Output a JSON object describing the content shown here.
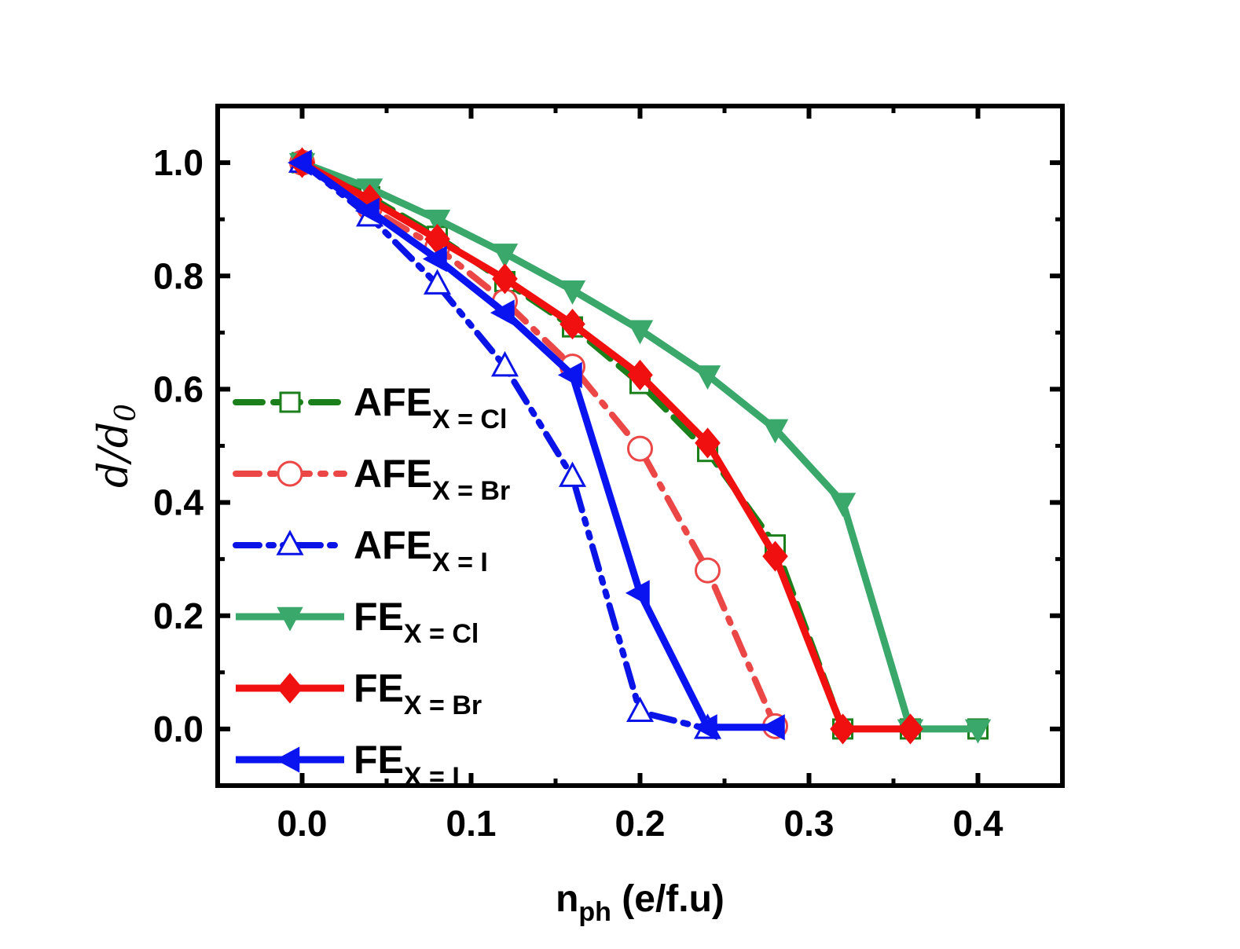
{
  "chart_data": {
    "type": "line",
    "xlabel_main": "n",
    "xlabel_sub": "ph",
    "xlabel_rest": " (e/f.u)",
    "ylabel_main": "d/d",
    "ylabel_sub": "0",
    "xlim": [
      -0.05,
      0.45
    ],
    "ylim": [
      -0.1,
      1.1
    ],
    "xticks": [
      0.0,
      0.1,
      0.2,
      0.3,
      0.4
    ],
    "xtick_labels": [
      "0.0",
      "0.1",
      "0.2",
      "0.3",
      "0.4"
    ],
    "yticks": [
      0.0,
      0.2,
      0.4,
      0.6,
      0.8,
      1.0
    ],
    "ytick_labels": [
      "0.0",
      "0.2",
      "0.4",
      "0.6",
      "0.8",
      "1.0"
    ],
    "grid": false,
    "legend_position": "left",
    "series": [
      {
        "name": "AFE",
        "subscript": "X = Cl",
        "color": "#1b7f1b",
        "marker": "square-open",
        "line": "dash",
        "x": [
          0.0,
          0.04,
          0.08,
          0.12,
          0.16,
          0.2,
          0.24,
          0.28,
          0.32,
          0.36,
          0.4
        ],
        "y": [
          1.0,
          0.94,
          0.87,
          0.79,
          0.71,
          0.61,
          0.49,
          0.325,
          0.0,
          0.0,
          0.0
        ]
      },
      {
        "name": "AFE",
        "subscript": "X = Br",
        "color": "#ec4747",
        "marker": "circle-open",
        "line": "dashdot",
        "x": [
          0.0,
          0.04,
          0.08,
          0.12,
          0.16,
          0.2,
          0.24,
          0.28
        ],
        "y": [
          1.0,
          0.92,
          0.85,
          0.755,
          0.64,
          0.495,
          0.28,
          0.005
        ]
      },
      {
        "name": "AFE",
        "subscript": "X = I",
        "color": "#0a14e6",
        "marker": "triangle-up-open",
        "line": "dashdotdot",
        "x": [
          0.0,
          0.04,
          0.08,
          0.12,
          0.16,
          0.2,
          0.24
        ],
        "y": [
          1.0,
          0.905,
          0.785,
          0.64,
          0.445,
          0.03,
          0.0
        ]
      },
      {
        "name": "FE",
        "subscript": "X = Cl",
        "color": "#3aa86a",
        "marker": "triangle-down-filled",
        "line": "solid",
        "x": [
          0.0,
          0.04,
          0.08,
          0.12,
          0.16,
          0.2,
          0.24,
          0.28,
          0.32,
          0.36,
          0.4
        ],
        "y": [
          1.0,
          0.955,
          0.9,
          0.84,
          0.775,
          0.705,
          0.625,
          0.53,
          0.4,
          0.0,
          0.0
        ]
      },
      {
        "name": "FE",
        "subscript": "X = Br",
        "color": "#f01010",
        "marker": "diamond-filled",
        "line": "solid",
        "x": [
          0.0,
          0.04,
          0.08,
          0.12,
          0.16,
          0.2,
          0.24,
          0.28,
          0.32,
          0.36
        ],
        "y": [
          1.0,
          0.935,
          0.865,
          0.795,
          0.715,
          0.625,
          0.505,
          0.305,
          0.0,
          0.0
        ]
      },
      {
        "name": "FE",
        "subscript": "X = I",
        "color": "#0a14f0",
        "marker": "triangle-left-filled",
        "line": "solid",
        "x": [
          0.0,
          0.04,
          0.08,
          0.12,
          0.16,
          0.2,
          0.24,
          0.28
        ],
        "y": [
          1.0,
          0.915,
          0.83,
          0.735,
          0.625,
          0.24,
          0.003,
          0.003
        ]
      }
    ]
  }
}
